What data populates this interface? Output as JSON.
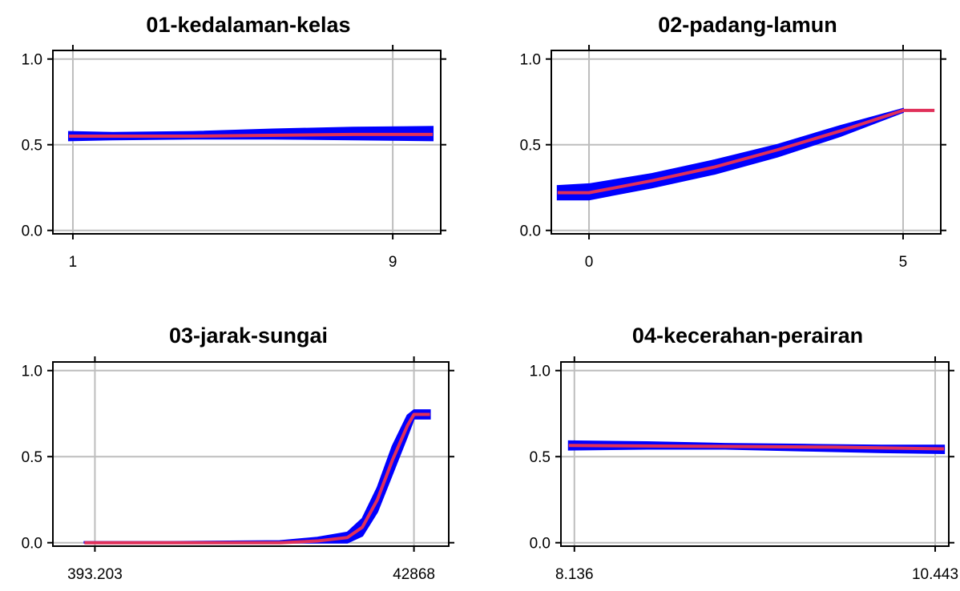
{
  "chart_data": [
    {
      "type": "line",
      "title": "01-kedalaman-kelas",
      "xlabel": "",
      "ylabel": "",
      "xlim": [
        0.5,
        10.2
      ],
      "ylim": [
        -0.02,
        1.05
      ],
      "x_ticks": [
        {
          "value": 1,
          "label": "1"
        },
        {
          "value": 9,
          "label": "9"
        }
      ],
      "y_ticks": [
        {
          "value": 0.0,
          "label": "0.0"
        },
        {
          "value": 0.5,
          "label": "0.5"
        },
        {
          "value": 1.0,
          "label": "1.0"
        }
      ],
      "grid": true,
      "series": [
        {
          "role": "band",
          "color": "#0000ff",
          "x": [
            0.9,
            2.0,
            4.0,
            6.0,
            8.0,
            10.0
          ],
          "low": [
            0.525,
            0.53,
            0.535,
            0.535,
            0.53,
            0.525
          ],
          "high": [
            0.575,
            0.57,
            0.575,
            0.59,
            0.6,
            0.605
          ]
        },
        {
          "role": "mean",
          "color": "#e0305a",
          "x": [
            0.9,
            4.0,
            8.0,
            10.0
          ],
          "y": [
            0.55,
            0.55,
            0.56,
            0.56
          ]
        }
      ]
    },
    {
      "type": "line",
      "title": "02-padang-lamun",
      "xlabel": "",
      "ylabel": "",
      "xlim": [
        -0.6,
        5.6
      ],
      "ylim": [
        -0.02,
        1.05
      ],
      "x_ticks": [
        {
          "value": 0,
          "label": "0"
        },
        {
          "value": 5,
          "label": "5"
        }
      ],
      "y_ticks": [
        {
          "value": 0.0,
          "label": "0.0"
        },
        {
          "value": 0.5,
          "label": "0.5"
        },
        {
          "value": 1.0,
          "label": "1.0"
        }
      ],
      "grid": true,
      "series": [
        {
          "role": "band",
          "color": "#0000ff",
          "x": [
            -0.5,
            0.0,
            1.0,
            2.0,
            3.0,
            4.0,
            5.0
          ],
          "low": [
            0.18,
            0.18,
            0.25,
            0.33,
            0.43,
            0.55,
            0.69
          ],
          "high": [
            0.26,
            0.27,
            0.33,
            0.41,
            0.5,
            0.61,
            0.71
          ]
        },
        {
          "role": "mean",
          "color": "#e0305a",
          "x": [
            -0.5,
            0.0,
            1.0,
            2.0,
            3.0,
            4.0,
            5.0,
            5.5
          ],
          "y": [
            0.22,
            0.22,
            0.29,
            0.37,
            0.47,
            0.58,
            0.7,
            0.7
          ]
        }
      ]
    },
    {
      "type": "line",
      "title": "03-jarak-sungai",
      "xlabel": "",
      "ylabel": "",
      "xlim": [
        -5200,
        47500
      ],
      "ylim": [
        -0.02,
        1.05
      ],
      "x_ticks": [
        {
          "value": 393.203,
          "label": "393.203"
        },
        {
          "value": 42868,
          "label": "42868"
        }
      ],
      "y_ticks": [
        {
          "value": 0.0,
          "label": "0.0"
        },
        {
          "value": 0.5,
          "label": "0.5"
        },
        {
          "value": 1.0,
          "label": "1.0"
        }
      ],
      "grid": true,
      "series": [
        {
          "role": "band",
          "color": "#0000ff",
          "x": [
            -1000,
            10000,
            25000,
            30000,
            34000,
            36000,
            38000,
            40000,
            42000,
            42868,
            45000
          ],
          "low": [
            0.0,
            0.0,
            0.0,
            0.0,
            0.0,
            0.04,
            0.18,
            0.4,
            0.62,
            0.72,
            0.72
          ],
          "high": [
            0.005,
            0.005,
            0.01,
            0.03,
            0.06,
            0.14,
            0.32,
            0.56,
            0.74,
            0.77,
            0.77
          ]
        },
        {
          "role": "mean",
          "color": "#e0305a",
          "x": [
            -1000,
            10000,
            25000,
            30000,
            34000,
            36000,
            38000,
            40000,
            42000,
            42868,
            45000
          ],
          "y": [
            0.0,
            0.0,
            0.0,
            0.01,
            0.03,
            0.09,
            0.25,
            0.48,
            0.68,
            0.745,
            0.745
          ]
        }
      ]
    },
    {
      "type": "line",
      "title": "04-kecerahan-perairan",
      "xlabel": "",
      "ylabel": "",
      "xlim": [
        8.05,
        10.53
      ],
      "ylim": [
        -0.02,
        1.05
      ],
      "x_ticks": [
        {
          "value": 8.136,
          "label": "8.136"
        },
        {
          "value": 10.443,
          "label": "10.443"
        }
      ],
      "y_ticks": [
        {
          "value": 0.0,
          "label": "0.0"
        },
        {
          "value": 0.5,
          "label": "0.5"
        },
        {
          "value": 1.0,
          "label": "1.0"
        }
      ],
      "grid": true,
      "series": [
        {
          "role": "band",
          "color": "#0000ff",
          "x": [
            8.1,
            8.6,
            9.1,
            9.6,
            10.1,
            10.5
          ],
          "low": [
            0.54,
            0.545,
            0.545,
            0.535,
            0.525,
            0.52
          ],
          "high": [
            0.59,
            0.585,
            0.575,
            0.57,
            0.565,
            0.565
          ]
        },
        {
          "role": "mean",
          "color": "#e0305a",
          "x": [
            8.1,
            9.0,
            9.8,
            10.5
          ],
          "y": [
            0.565,
            0.56,
            0.555,
            0.545
          ]
        }
      ]
    }
  ]
}
